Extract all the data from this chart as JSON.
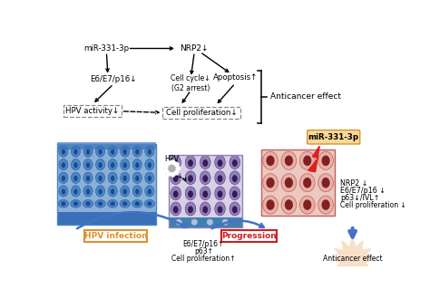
{
  "title": "",
  "bg_color": "#ffffff",
  "figsize": [
    4.74,
    3.3
  ],
  "dpi": 100,
  "top_section": {
    "mir_label": "miR-331-3p",
    "nrp2_label": "NRP2↓",
    "e6e7_label": "E6/E7/p16↓",
    "hpv_box_label": "HPV activity↓",
    "cell_cycle_label": "Cell cycle↓\n(G2 arrest)",
    "apoptosis_label": "Apoptosis↑",
    "cell_prolif_box_label": "Cell proliferation↓",
    "anticancer_label": "Anticancer effect"
  },
  "bottom_section": {
    "mir_box_label": "miR-331-3p",
    "nrp2_text": "NRP2 ↓",
    "e6e7_text": "E6/E7/p16 ↓",
    "p63_ivl_text": "p63↓/IVL↑",
    "cell_prolif_text": "Cell proliferation ↓",
    "hpv_infection_label": "HPV infection",
    "progression_label": "Progression",
    "e6e7_up_text": "E6/E7/p16↑",
    "p63_up_text": "p63↑",
    "cell_prolif_up_text": "Cell proliferation↑",
    "anticancer_bottom_label": "Anticancer effect",
    "hpv_label": "HPV"
  },
  "colors": {
    "blue_cell_outer": "#4a86c8",
    "blue_cell_dark": "#1a4a8a",
    "blue_cell_mid": "#3060a8",
    "blue_cell_light": "#8ab0d8",
    "blue_base": "#3a70b8",
    "purple_cell_outer": "#9080b8",
    "purple_cell_dark": "#5040808",
    "purple_cell_mid": "#604898",
    "purple_cell_light": "#c0b0d8",
    "purple_base": "#4080b0",
    "red_cell_outer": "#c06060",
    "red_cell_dark": "#802020",
    "red_cell_light": "#e8b0a8",
    "pink_bg": "#ecc8c0",
    "orange_box": "#e09030",
    "orange_box_bg": "#f8d898",
    "red_box": "#cc2020",
    "arrow_blue": "#4472c4",
    "anticancer_bg": "#f8e0c8",
    "gray_hpv": "#b0b0b0",
    "lightning_red": "#dd2020"
  }
}
